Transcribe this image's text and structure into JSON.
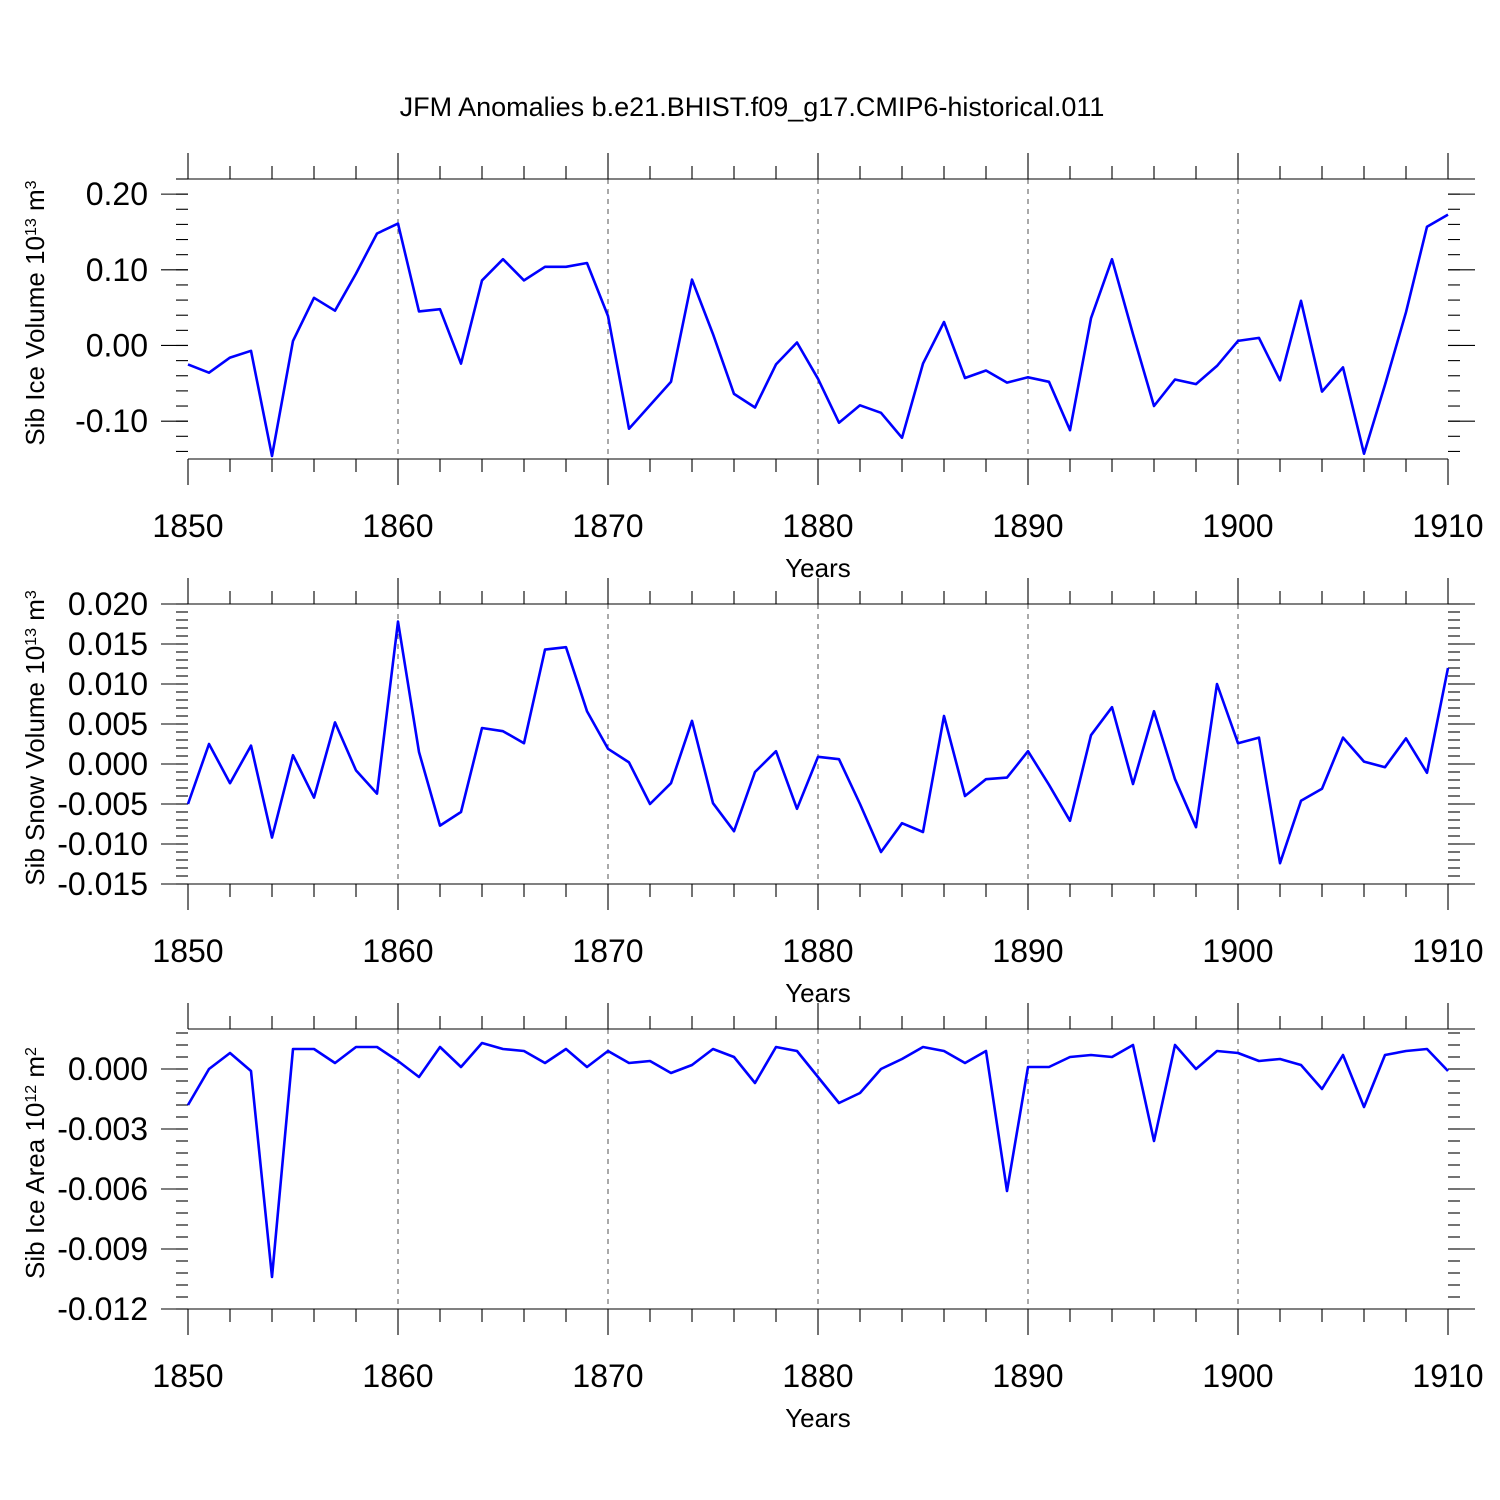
{
  "title": "JFM Anomalies b.e21.BHIST.f09_g17.CMIP6-historical.011",
  "colors": {
    "series": "#0000ff",
    "axis": "#000000",
    "grid": "#555555"
  },
  "chart_data": [
    {
      "type": "line",
      "name": "ice-volume",
      "ylabel": "Sib Ice Volume 10",
      "ylabel_exp": "13",
      "ylabel_unit": " m",
      "ylabel_unit_exp": "3",
      "xlabel": "Years",
      "xlim": [
        1850,
        1910
      ],
      "ylim": [
        -0.15,
        0.22
      ],
      "yticks": [
        -0.1,
        0.0,
        0.1,
        0.2
      ],
      "ytick_labels": [
        "-0.10",
        "0.00",
        "0.10",
        "0.20"
      ],
      "yminor_step": 0.02,
      "xticks": [
        1850,
        1860,
        1870,
        1880,
        1890,
        1900,
        1910
      ],
      "xtick_labels": [
        "1850",
        "1860",
        "1870",
        "1880",
        "1890",
        "1900",
        "1910"
      ],
      "x_gridlines": [
        1860,
        1870,
        1880,
        1890,
        1900
      ],
      "x": [
        1850,
        1851,
        1852,
        1853,
        1854,
        1855,
        1856,
        1857,
        1858,
        1859,
        1860,
        1861,
        1862,
        1863,
        1864,
        1865,
        1866,
        1867,
        1868,
        1869,
        1870,
        1871,
        1872,
        1873,
        1874,
        1875,
        1876,
        1877,
        1878,
        1879,
        1880,
        1881,
        1882,
        1883,
        1884,
        1885,
        1886,
        1887,
        1888,
        1889,
        1890,
        1891,
        1892,
        1893,
        1894,
        1895,
        1896,
        1897,
        1898,
        1899,
        1900,
        1901,
        1902,
        1903,
        1904,
        1905,
        1906,
        1907,
        1908,
        1909,
        1910
      ],
      "values": [
        -0.025,
        -0.036,
        -0.016,
        -0.007,
        -0.146,
        0.006,
        0.063,
        0.046,
        0.095,
        0.148,
        0.161,
        0.045,
        0.048,
        -0.024,
        0.086,
        0.114,
        0.086,
        0.104,
        0.104,
        0.109,
        0.039,
        -0.11,
        -0.079,
        -0.048,
        0.087,
        0.015,
        -0.064,
        -0.082,
        -0.025,
        0.004,
        -0.044,
        -0.102,
        -0.079,
        -0.089,
        -0.122,
        -0.024,
        0.031,
        -0.043,
        -0.033,
        -0.049,
        -0.042,
        -0.048,
        -0.112,
        0.036,
        0.114,
        0.015,
        -0.08,
        -0.045,
        -0.051,
        -0.027,
        0.006,
        0.01,
        -0.046,
        0.059,
        -0.061,
        -0.029,
        -0.143,
        -0.052,
        0.044,
        0.157,
        0.173
      ]
    },
    {
      "type": "line",
      "name": "snow-volume",
      "ylabel": "Sib Snow Volume 10",
      "ylabel_exp": "13",
      "ylabel_unit": " m",
      "ylabel_unit_exp": "3",
      "xlabel": "Years",
      "xlim": [
        1850,
        1910
      ],
      "ylim": [
        -0.015,
        0.02
      ],
      "yticks": [
        -0.015,
        -0.01,
        -0.005,
        0.0,
        0.005,
        0.01,
        0.015,
        0.02
      ],
      "ytick_labels": [
        "-0.015",
        "-0.010",
        "-0.005",
        "0.000",
        "0.005",
        "0.010",
        "0.015",
        "0.020"
      ],
      "yminor_step": 0.001,
      "xticks": [
        1850,
        1860,
        1870,
        1880,
        1890,
        1900,
        1910
      ],
      "xtick_labels": [
        "1850",
        "1860",
        "1870",
        "1880",
        "1890",
        "1900",
        "1910"
      ],
      "x_gridlines": [
        1860,
        1870,
        1880,
        1890,
        1900
      ],
      "x": [
        1850,
        1851,
        1852,
        1853,
        1854,
        1855,
        1856,
        1857,
        1858,
        1859,
        1860,
        1861,
        1862,
        1863,
        1864,
        1865,
        1866,
        1867,
        1868,
        1869,
        1870,
        1871,
        1872,
        1873,
        1874,
        1875,
        1876,
        1877,
        1878,
        1879,
        1880,
        1881,
        1882,
        1883,
        1884,
        1885,
        1886,
        1887,
        1888,
        1889,
        1890,
        1891,
        1892,
        1893,
        1894,
        1895,
        1896,
        1897,
        1898,
        1899,
        1900,
        1901,
        1902,
        1903,
        1904,
        1905,
        1906,
        1907,
        1908,
        1909,
        1910
      ],
      "values": [
        -0.005,
        0.0025,
        -0.0024,
        0.0023,
        -0.0092,
        0.0011,
        -0.0042,
        0.0052,
        -0.0008,
        -0.0037,
        0.0178,
        0.0015,
        -0.0077,
        -0.006,
        0.0045,
        0.0041,
        0.0026,
        0.0143,
        0.0146,
        0.0066,
        0.0019,
        0.0002,
        -0.005,
        -0.0024,
        0.0054,
        -0.0049,
        -0.0084,
        -0.001,
        0.0016,
        -0.0056,
        0.0009,
        0.0006,
        -0.005,
        -0.011,
        -0.0074,
        -0.0085,
        0.006,
        -0.004,
        -0.0019,
        -0.0017,
        0.0016,
        -0.0026,
        -0.0071,
        0.0036,
        0.0071,
        -0.0025,
        0.0066,
        -0.0019,
        -0.0079,
        0.01,
        0.0026,
        0.0033,
        -0.0124,
        -0.0046,
        -0.0031,
        0.0033,
        0.0003,
        -0.0004,
        0.0032,
        -0.0011,
        0.012
      ]
    },
    {
      "type": "line",
      "name": "ice-area",
      "ylabel": "Sib Ice Area 10",
      "ylabel_exp": "12",
      "ylabel_unit": " m",
      "ylabel_unit_exp": "2",
      "xlabel": "Years",
      "xlim": [
        1850,
        1910
      ],
      "ylim": [
        -0.012,
        0.002
      ],
      "yticks": [
        -0.012,
        -0.009,
        -0.006,
        -0.003,
        0.0
      ],
      "ytick_labels": [
        "-0.012",
        "-0.009",
        "-0.006",
        "-0.003",
        "0.000"
      ],
      "yminor_step": 0.0006,
      "xticks": [
        1850,
        1860,
        1870,
        1880,
        1890,
        1900,
        1910
      ],
      "xtick_labels": [
        "1850",
        "1860",
        "1870",
        "1880",
        "1890",
        "1900",
        "1910"
      ],
      "x_gridlines": [
        1860,
        1870,
        1880,
        1890,
        1900
      ],
      "x": [
        1850,
        1851,
        1852,
        1853,
        1854,
        1855,
        1856,
        1857,
        1858,
        1859,
        1860,
        1861,
        1862,
        1863,
        1864,
        1865,
        1866,
        1867,
        1868,
        1869,
        1870,
        1871,
        1872,
        1873,
        1874,
        1875,
        1876,
        1877,
        1878,
        1879,
        1880,
        1881,
        1882,
        1883,
        1884,
        1885,
        1886,
        1887,
        1888,
        1889,
        1890,
        1891,
        1892,
        1893,
        1894,
        1895,
        1896,
        1897,
        1898,
        1899,
        1900,
        1901,
        1902,
        1903,
        1904,
        1905,
        1906,
        1907,
        1908,
        1909,
        1910
      ],
      "values": [
        -0.0018,
        0.0,
        0.0008,
        -0.0001,
        -0.0104,
        0.001,
        0.001,
        0.0003,
        0.0011,
        0.0011,
        0.0004,
        -0.0004,
        0.0011,
        0.0001,
        0.0013,
        0.001,
        0.0009,
        0.0003,
        0.001,
        0.0001,
        0.0009,
        0.0003,
        0.0004,
        -0.0002,
        0.0002,
        0.001,
        0.0006,
        -0.0007,
        0.0011,
        0.0009,
        -0.0004,
        -0.0017,
        -0.0012,
        0.0,
        0.0005,
        0.0011,
        0.0009,
        0.0003,
        0.0009,
        -0.0061,
        0.0001,
        0.0001,
        0.0006,
        0.0007,
        0.0006,
        0.0012,
        -0.0036,
        0.0012,
        0.0,
        0.0009,
        0.0008,
        0.0004,
        0.0005,
        0.0002,
        -0.001,
        0.0007,
        -0.0019,
        0.0007,
        0.0009,
        0.001,
        -0.0001
      ]
    }
  ]
}
